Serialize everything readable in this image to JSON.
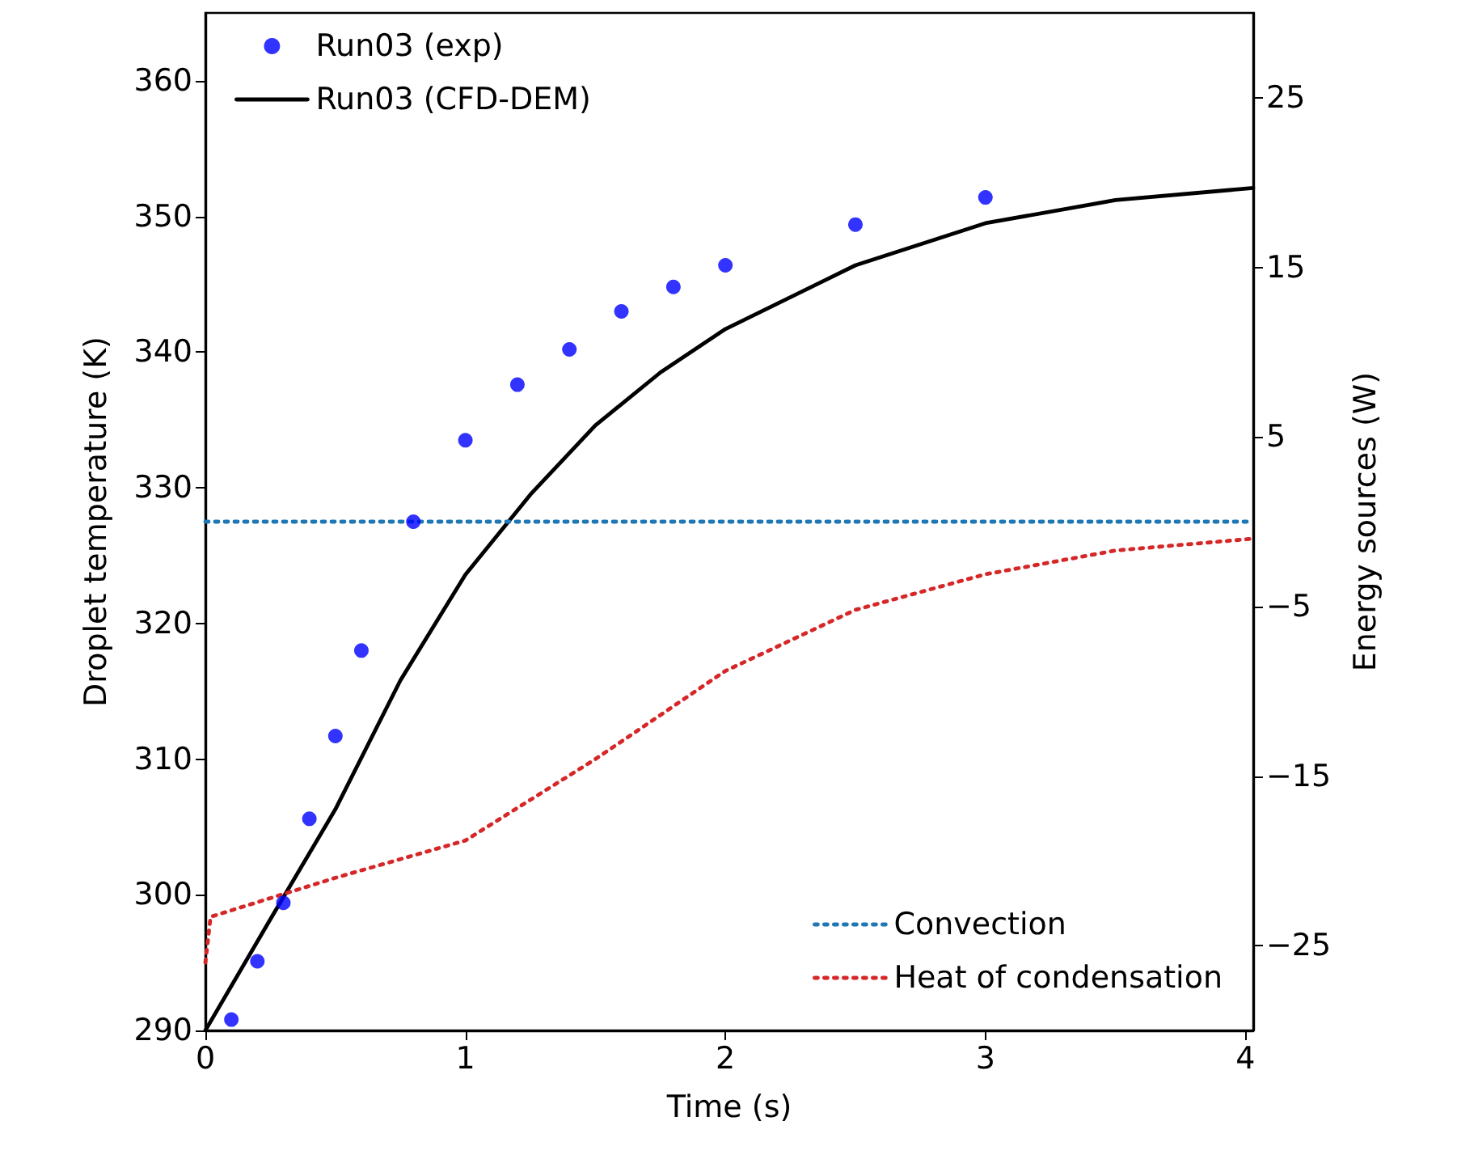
{
  "chart_data": {
    "type": "line",
    "xlabel": "Time (s)",
    "ylabel": "Droplet temperature (K)",
    "y2label": "Energy sources (W)",
    "xlim": [
      0,
      4.03
    ],
    "xticks": [
      0,
      1,
      2,
      3,
      4
    ],
    "ylim": [
      290,
      365
    ],
    "yticks": [
      290,
      300,
      310,
      320,
      330,
      340,
      350,
      360
    ],
    "y2lim": [
      -30,
      30
    ],
    "y2ticks": [
      {
        "value": -25,
        "label": "−25"
      },
      {
        "value": -15,
        "label": "−15"
      },
      {
        "value": -5,
        "label": "−5"
      },
      5,
      15,
      25
    ],
    "grid": false,
    "legend": "top left",
    "series": [
      {
        "name": "Run03 (exp)",
        "type": "scatter",
        "marker": "circle",
        "color": "#0000ff",
        "x": [
          0.1,
          0.2,
          0.3,
          0.4,
          0.5,
          0.6,
          0.8,
          1.0,
          1.2,
          1.4,
          1.6,
          1.8,
          2.0,
          2.5,
          3.0
        ],
        "values": [
          290.8,
          295.1,
          299.4,
          305.6,
          311.7,
          318.0,
          327.5,
          333.5,
          337.6,
          340.2,
          343.0,
          344.8,
          346.4,
          349.4,
          351.4
        ]
      },
      {
        "name": "Run03 (CFD-DEM)",
        "type": "line",
        "color": "#000000",
        "line_style": "solid",
        "x": [
          0,
          0.25,
          0.5,
          0.75,
          1.0,
          1.25,
          1.5,
          1.75,
          2.0,
          2.5,
          3.0,
          3.5,
          4.03
        ],
        "values": [
          290,
          298.2,
          306.3,
          315.8,
          323.6,
          329.5,
          334.6,
          338.5,
          341.7,
          346.4,
          349.5,
          351.2,
          352.1
        ]
      },
      {
        "name": "Convection",
        "type": "line",
        "axis": "y2",
        "color": "#1f77b4",
        "line_style": "dotted",
        "x": [
          0,
          4.03
        ],
        "values": [
          0,
          0
        ]
      },
      {
        "name": "Heat of condensation",
        "type": "line",
        "axis": "y2",
        "color": "#d62728",
        "line_style": "dotted",
        "x": [
          0,
          0.02,
          0.5,
          1.0,
          1.5,
          2.0,
          2.5,
          3.0,
          3.5,
          4.03
        ],
        "values": [
          -26,
          -23.3,
          -21,
          -18.8,
          -14,
          -8.8,
          -5.2,
          -3.1,
          -1.7,
          -1.0
        ]
      }
    ]
  }
}
